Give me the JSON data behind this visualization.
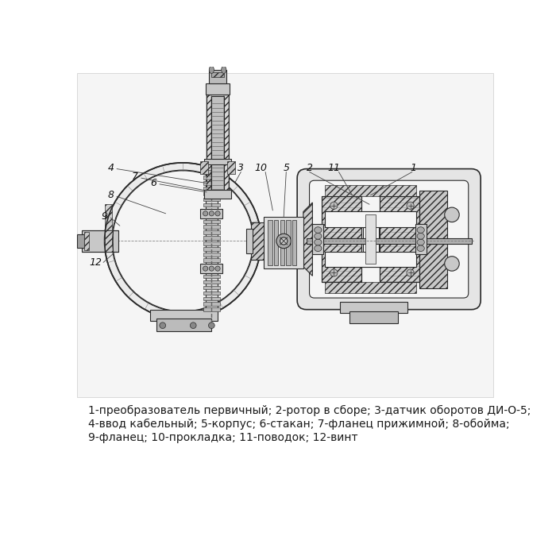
{
  "background_color": "#ffffff",
  "caption_lines": [
    "1-преобразователь первичный; 2-ротор в сборе; 3-датчик оборотов ДИ-О-5;",
    "4-ввод кабельный; 5-корпус; 6-стакан; 7-фланец прижимной; 8-обойма;",
    "9-фланец; 10-прокладка; 11-поводок; 12-винт"
  ],
  "caption_fontsize": 10.0,
  "caption_color": "#1a1a1a",
  "figsize": [
    7.0,
    7.0
  ],
  "dpi": 100,
  "draw_color": "#2a2a2a",
  "hatch_color": "#555555",
  "fill_light": "#e8e8e8",
  "fill_mid": "#c8c8c8",
  "fill_dark": "#a0a0a0",
  "fill_white": "#f5f5f5"
}
